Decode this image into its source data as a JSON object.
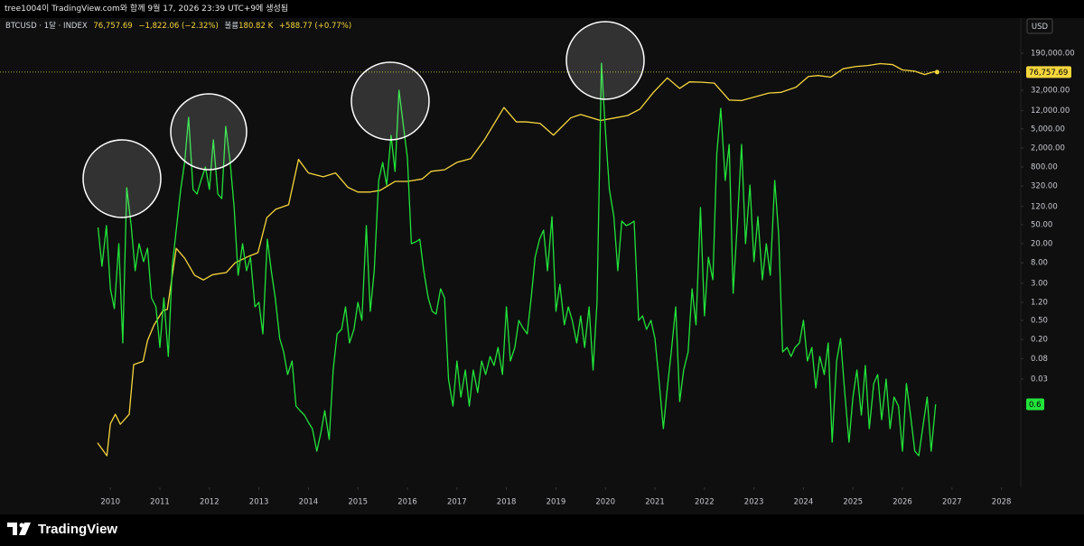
{
  "header": "tree1004이 TradingView.com와 함께 9월 17, 2026 23:39 UTC+9에 생성됨",
  "brand": "TradingView",
  "chart_data": {
    "type": "line",
    "currency": "USD",
    "legend": {
      "last": "76,757.69",
      "change": "−1,822.06 (−2.32%)",
      "volume_label": "볼륨",
      "volume": "180.82 K",
      "volume_change": "+588.77 (+0.77%)"
    },
    "xlim": [
      2007.77,
      2028.39
    ],
    "xticks": [
      2010,
      2011,
      2012,
      2013,
      2014,
      2015,
      2016,
      2017,
      2018,
      2019,
      2020,
      2021,
      2022,
      2023,
      2024,
      2025,
      2026,
      2027,
      2028
    ],
    "log_scale": true,
    "grid": false,
    "ylim": [
      0.000164,
      1030000
    ],
    "yticks": [
      {
        "value": 190000,
        "label": "190,000.00"
      },
      {
        "value": 32000,
        "label": "32,000.00"
      },
      {
        "value": 12000,
        "label": "12,000.00"
      },
      {
        "value": 5000,
        "label": "5,000.00"
      },
      {
        "value": 2000,
        "label": "2,000.00"
      },
      {
        "value": 800,
        "label": "800.00"
      },
      {
        "value": 320,
        "label": "320.00"
      },
      {
        "value": 120,
        "label": "120.00"
      },
      {
        "value": 50,
        "label": "50.00"
      },
      {
        "value": 20,
        "label": "20.00"
      },
      {
        "value": 8,
        "label": "8.00"
      },
      {
        "value": 3,
        "label": "3.00"
      },
      {
        "value": 1.2,
        "label": "1.20"
      },
      {
        "value": 0.5,
        "label": "0.50"
      },
      {
        "value": 0.2,
        "label": "0.20"
      },
      {
        "value": 0.08,
        "label": "0.08"
      },
      {
        "value": 0.03,
        "label": "0.03"
      }
    ],
    "y2lim": [
      -8.6,
      43.4
    ],
    "series": [
      {
        "name": "BTCUSD · 1달 · INDEX",
        "color": "#f5d63d",
        "x": [
          2009.74,
          2009.93,
          2010.0,
          2010.1,
          2010.2,
          2010.38,
          2010.47,
          2010.66,
          2010.75,
          2010.88,
          2011.06,
          2011.15,
          2011.33,
          2011.5,
          2011.7,
          2011.88,
          2012.06,
          2012.34,
          2012.52,
          2012.8,
          2012.98,
          2013.16,
          2013.34,
          2013.6,
          2013.8,
          2014.0,
          2014.3,
          2014.55,
          2014.8,
          2015.0,
          2015.25,
          2015.45,
          2015.75,
          2016.0,
          2016.3,
          2016.48,
          2016.75,
          2017.0,
          2017.28,
          2017.56,
          2017.95,
          2018.2,
          2018.4,
          2018.68,
          2018.95,
          2019.3,
          2019.5,
          2019.9,
          2020.2,
          2020.45,
          2020.7,
          2020.97,
          2021.25,
          2021.5,
          2021.7,
          2021.95,
          2022.2,
          2022.5,
          2022.75,
          2023.0,
          2023.3,
          2023.55,
          2023.85,
          2024.1,
          2024.3,
          2024.55,
          2024.8,
          2025.05,
          2025.3,
          2025.55,
          2025.8,
          2026.0,
          2026.25,
          2026.45,
          2026.63,
          2026.7
        ],
        "values": [
          0.0014,
          0.00075,
          0.0035,
          0.0055,
          0.0034,
          0.0055,
          0.06,
          0.07,
          0.19,
          0.4,
          0.8,
          0.85,
          16,
          10,
          4.4,
          3.5,
          4.5,
          5,
          8,
          11,
          13,
          70,
          105,
          130,
          1150,
          600,
          500,
          600,
          300,
          240,
          240,
          260,
          400,
          400,
          450,
          650,
          700,
          1000,
          1200,
          3000,
          14000,
          7000,
          7000,
          6500,
          3700,
          8500,
          10000,
          7500,
          8500,
          9500,
          13000,
          29000,
          58000,
          35000,
          48000,
          47000,
          45000,
          20000,
          19500,
          23000,
          28000,
          29000,
          37000,
          62000,
          65000,
          60000,
          90000,
          100000,
          105000,
          115000,
          110000,
          85000,
          80000,
          68000,
          78000,
          76757.69
        ]
      },
      {
        "color": "#22e33a",
        "axis": "y2",
        "x": [
          2009.75,
          2009.83,
          2009.92,
          2010,
          2010.08,
          2010.17,
          2010.25,
          2010.33,
          2010.42,
          2010.5,
          2010.58,
          2010.67,
          2010.75,
          2010.83,
          2010.92,
          2011,
          2011.08,
          2011.17,
          2011.25,
          2011.33,
          2011.42,
          2011.5,
          2011.58,
          2011.67,
          2011.75,
          2011.83,
          2011.92,
          2012,
          2012.08,
          2012.17,
          2012.25,
          2012.33,
          2012.42,
          2012.5,
          2012.58,
          2012.67,
          2012.75,
          2012.83,
          2012.92,
          2013,
          2013.08,
          2013.17,
          2013.25,
          2013.33,
          2013.42,
          2013.5,
          2013.58,
          2013.67,
          2013.75,
          2013.83,
          2013.92,
          2014,
          2014.08,
          2014.17,
          2014.25,
          2014.33,
          2014.42,
          2014.5,
          2014.58,
          2014.67,
          2014.75,
          2014.83,
          2014.92,
          2015,
          2015.08,
          2015.17,
          2015.25,
          2015.33,
          2015.42,
          2015.5,
          2015.58,
          2015.67,
          2015.75,
          2015.83,
          2015.92,
          2016,
          2016.08,
          2016.17,
          2016.25,
          2016.33,
          2016.42,
          2016.5,
          2016.58,
          2016.67,
          2016.75,
          2016.83,
          2016.92,
          2017,
          2017.08,
          2017.17,
          2017.25,
          2017.33,
          2017.42,
          2017.5,
          2017.58,
          2017.67,
          2017.75,
          2017.83,
          2017.92,
          2018,
          2018.08,
          2018.17,
          2018.25,
          2018.33,
          2018.42,
          2018.5,
          2018.58,
          2018.67,
          2018.75,
          2018.83,
          2018.92,
          2019,
          2019.08,
          2019.17,
          2019.25,
          2019.33,
          2019.42,
          2019.5,
          2019.58,
          2019.67,
          2019.75,
          2019.83,
          2019.92,
          2020,
          2020.08,
          2020.17,
          2020.25,
          2020.33,
          2020.42,
          2020.5,
          2020.58,
          2020.67,
          2020.75,
          2020.83,
          2020.92,
          2021,
          2021.08,
          2021.17,
          2021.25,
          2021.33,
          2021.42,
          2021.5,
          2021.58,
          2021.67,
          2021.75,
          2021.83,
          2021.92,
          2022,
          2022.08,
          2022.17,
          2022.25,
          2022.33,
          2022.42,
          2022.5,
          2022.58,
          2022.67,
          2022.75,
          2022.83,
          2022.92,
          2023,
          2023.08,
          2023.17,
          2023.25,
          2023.33,
          2023.42,
          2023.5,
          2023.58,
          2023.67,
          2023.75,
          2023.83,
          2023.92,
          2024,
          2024.08,
          2024.17,
          2024.25,
          2024.33,
          2024.42,
          2024.5,
          2024.58,
          2024.67,
          2024.75,
          2024.83,
          2024.92,
          2025,
          2025.08,
          2025.17,
          2025.25,
          2025.33,
          2025.42,
          2025.5,
          2025.58,
          2025.67,
          2025.75,
          2025.83,
          2025.92,
          2026,
          2026.08,
          2026.17,
          2026.25,
          2026.33,
          2026.42,
          2026.5,
          2026.58,
          2026.67
        ],
        "values": [
          20.2,
          15.9,
          20.4,
          13.4,
          11.2,
          18.4,
          7.4,
          24.6,
          20.4,
          15.4,
          18.4,
          16.4,
          17.9,
          12.4,
          11.4,
          6.9,
          12.4,
          5.9,
          15.9,
          19.9,
          24.4,
          27.4,
          32.4,
          24.4,
          23.9,
          25.4,
          26.9,
          24.4,
          29.9,
          23.9,
          23.4,
          31.4,
          27.4,
          22.4,
          14.9,
          18.4,
          15.4,
          16.9,
          11.4,
          11.9,
          8.4,
          18.9,
          15.4,
          12.4,
          7.9,
          6.4,
          3.9,
          5.4,
          0.4,
          -0.1,
          -0.6,
          -1.4,
          -2.1,
          -4.6,
          -2.6,
          -0.1,
          -3.3,
          4.4,
          8.4,
          8.9,
          11.4,
          7.4,
          8.9,
          11.9,
          9.9,
          20.4,
          10.9,
          15.4,
          25.4,
          27.4,
          24.9,
          30.4,
          26.4,
          35.4,
          31.4,
          27.9,
          18.4,
          18.6,
          18.9,
          15.4,
          12.4,
          10.9,
          10.6,
          13.4,
          12.4,
          3.4,
          0.4,
          5.4,
          1.4,
          4.4,
          0.4,
          4.4,
          1.9,
          5.4,
          3.9,
          5.9,
          4.9,
          6.9,
          3.9,
          11.4,
          5.4,
          6.9,
          9.9,
          9.1,
          8.4,
          12.4,
          16.9,
          18.9,
          19.9,
          15.4,
          21.4,
          10.9,
          13.9,
          9.4,
          11.4,
          9.9,
          7.4,
          10.4,
          6.9,
          11.4,
          4.4,
          11.9,
          38.4,
          30.9,
          24.4,
          21.4,
          15.4,
          20.9,
          20.4,
          20.6,
          20.9,
          9.9,
          10.4,
          8.9,
          9.9,
          7.9,
          3.4,
          -2.1,
          2.4,
          6.4,
          11.4,
          0.9,
          4.4,
          6.4,
          13.4,
          9.4,
          22.4,
          10.4,
          16.9,
          14.4,
          28.4,
          33.4,
          25.4,
          29.4,
          12.9,
          21.2,
          29.4,
          18.4,
          24.9,
          16.4,
          21.4,
          14.4,
          18.4,
          14.9,
          25.4,
          19.4,
          6.4,
          6.9,
          5.9,
          6.9,
          7.4,
          9.9,
          5.4,
          6.9,
          2.4,
          5.9,
          3.9,
          7.4,
          -3.6,
          5.4,
          7.9,
          2.2,
          -3.6,
          1.4,
          4.4,
          -0.6,
          4.9,
          -2.1,
          2.9,
          3.9,
          -1.1,
          3.4,
          -2.1,
          1.4,
          0.4,
          -4.6,
          2.9,
          -0.9,
          -4.6,
          -5.1,
          -1.6,
          1.4,
          -4.6,
          0.6
        ]
      }
    ]
  }
}
